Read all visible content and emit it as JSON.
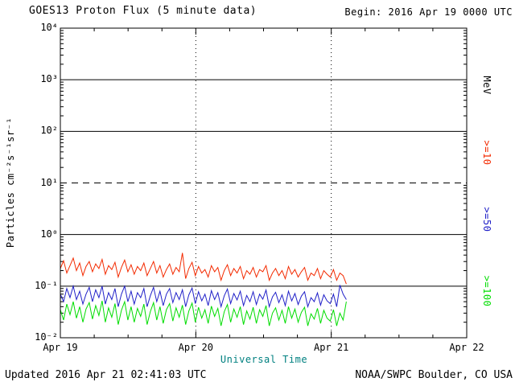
{
  "header": {
    "title": "GOES13 Proton Flux (5 minute data)",
    "begin": "Begin: 2016 Apr 19 0000 UTC"
  },
  "footer": {
    "updated": "Updated 2016 Apr 21 02:41:03 UTC",
    "credit": "NOAA/SWPC Boulder, CO USA"
  },
  "chart_data": {
    "type": "line",
    "title": "GOES13 Proton Flux (5 minute data)",
    "xlabel": "Universal Time",
    "ylabel": "Particles cm⁻²s⁻¹sr⁻¹",
    "x_unit": "hours since 2016 Apr 19 0000 UTC",
    "xlim": [
      0,
      72
    ],
    "ylim_log10": [
      -2,
      4
    ],
    "y_scale": "log10",
    "grid": {
      "solid_log10": [
        3,
        2,
        0,
        -1
      ],
      "dashed_log10": [
        1
      ],
      "day_lines_hours": [
        24,
        48
      ]
    },
    "x_ticks": [
      {
        "hour": 0,
        "label": "Apr 19"
      },
      {
        "hour": 24,
        "label": "Apr 20"
      },
      {
        "hour": 48,
        "label": "Apr 21"
      },
      {
        "hour": 72,
        "label": "Apr 22"
      }
    ],
    "y_ticks": [
      {
        "log10": 4,
        "label": "10⁴"
      },
      {
        "log10": 3,
        "label": "10³"
      },
      {
        "log10": 2,
        "label": "10²"
      },
      {
        "log10": 1,
        "label": "10¹"
      },
      {
        "log10": 0,
        "label": "10⁰"
      },
      {
        "log10": -1,
        "label": "10⁻¹"
      },
      {
        "log10": -2,
        "label": "10⁻²"
      }
    ],
    "right_labels": [
      {
        "text": "MeV",
        "color": "#000000",
        "y_log10": 2.9
      },
      {
        "text": ">=10",
        "color": "#f32a00",
        "y_log10": 1.58
      },
      {
        "text": ">=50",
        "color": "#2020c8",
        "y_log10": 0.29
      },
      {
        "text": ">=100",
        "color": "#00dd00",
        "y_log10": -1.1
      }
    ],
    "series": [
      {
        "name": ">=10 MeV",
        "color": "#f32a00",
        "t_start": 0,
        "t_end": 50.67,
        "values": [
          0.22,
          0.31,
          0.18,
          0.25,
          0.35,
          0.2,
          0.28,
          0.16,
          0.24,
          0.3,
          0.19,
          0.27,
          0.22,
          0.33,
          0.17,
          0.25,
          0.21,
          0.29,
          0.15,
          0.23,
          0.32,
          0.19,
          0.26,
          0.17,
          0.24,
          0.2,
          0.28,
          0.16,
          0.22,
          0.3,
          0.18,
          0.25,
          0.15,
          0.21,
          0.27,
          0.17,
          0.23,
          0.19,
          0.44,
          0.14,
          0.22,
          0.29,
          0.16,
          0.24,
          0.18,
          0.21,
          0.15,
          0.25,
          0.19,
          0.23,
          0.13,
          0.2,
          0.26,
          0.16,
          0.22,
          0.18,
          0.24,
          0.14,
          0.2,
          0.17,
          0.23,
          0.15,
          0.21,
          0.19,
          0.25,
          0.13,
          0.18,
          0.22,
          0.16,
          0.2,
          0.14,
          0.24,
          0.17,
          0.21,
          0.15,
          0.19,
          0.23,
          0.13,
          0.18,
          0.16,
          0.22,
          0.14,
          0.2,
          0.17,
          0.15,
          0.21,
          0.13,
          0.18,
          0.16,
          0.11
        ]
      },
      {
        "name": ">=50 MeV",
        "color": "#2020c8",
        "t_start": 0,
        "t_end": 50.67,
        "values": [
          0.07,
          0.05,
          0.09,
          0.06,
          0.1,
          0.055,
          0.08,
          0.045,
          0.07,
          0.095,
          0.05,
          0.085,
          0.06,
          0.1,
          0.045,
          0.075,
          0.055,
          0.09,
          0.04,
          0.07,
          0.1,
          0.05,
          0.08,
          0.045,
          0.075,
          0.06,
          0.09,
          0.04,
          0.065,
          0.095,
          0.05,
          0.08,
          0.042,
          0.07,
          0.09,
          0.048,
          0.075,
          0.055,
          0.085,
          0.04,
          0.068,
          0.092,
          0.046,
          0.078,
          0.052,
          0.07,
          0.042,
          0.082,
          0.055,
          0.075,
          0.04,
          0.065,
          0.088,
          0.046,
          0.072,
          0.054,
          0.08,
          0.042,
          0.066,
          0.05,
          0.078,
          0.044,
          0.07,
          0.056,
          0.084,
          0.04,
          0.062,
          0.076,
          0.048,
          0.068,
          0.042,
          0.08,
          0.052,
          0.072,
          0.044,
          0.064,
          0.078,
          0.04,
          0.06,
          0.05,
          0.074,
          0.043,
          0.068,
          0.052,
          0.046,
          0.07,
          0.04,
          0.105,
          0.07,
          0.055
        ]
      },
      {
        "name": ">=100 MeV",
        "color": "#00dd00",
        "t_start": 0,
        "t_end": 50.67,
        "values": [
          0.035,
          0.022,
          0.045,
          0.028,
          0.05,
          0.024,
          0.04,
          0.02,
          0.036,
          0.048,
          0.023,
          0.042,
          0.027,
          0.052,
          0.02,
          0.038,
          0.025,
          0.046,
          0.018,
          0.034,
          0.05,
          0.022,
          0.04,
          0.02,
          0.037,
          0.026,
          0.045,
          0.018,
          0.032,
          0.048,
          0.022,
          0.04,
          0.019,
          0.035,
          0.046,
          0.021,
          0.038,
          0.025,
          0.043,
          0.018,
          0.033,
          0.047,
          0.02,
          0.039,
          0.024,
          0.035,
          0.019,
          0.041,
          0.026,
          0.037,
          0.017,
          0.032,
          0.044,
          0.02,
          0.036,
          0.025,
          0.04,
          0.018,
          0.033,
          0.023,
          0.039,
          0.019,
          0.035,
          0.026,
          0.042,
          0.017,
          0.03,
          0.038,
          0.022,
          0.034,
          0.019,
          0.04,
          0.024,
          0.036,
          0.02,
          0.031,
          0.039,
          0.017,
          0.029,
          0.023,
          0.037,
          0.019,
          0.034,
          0.024,
          0.021,
          0.035,
          0.017,
          0.03,
          0.022,
          0.05
        ]
      }
    ]
  }
}
